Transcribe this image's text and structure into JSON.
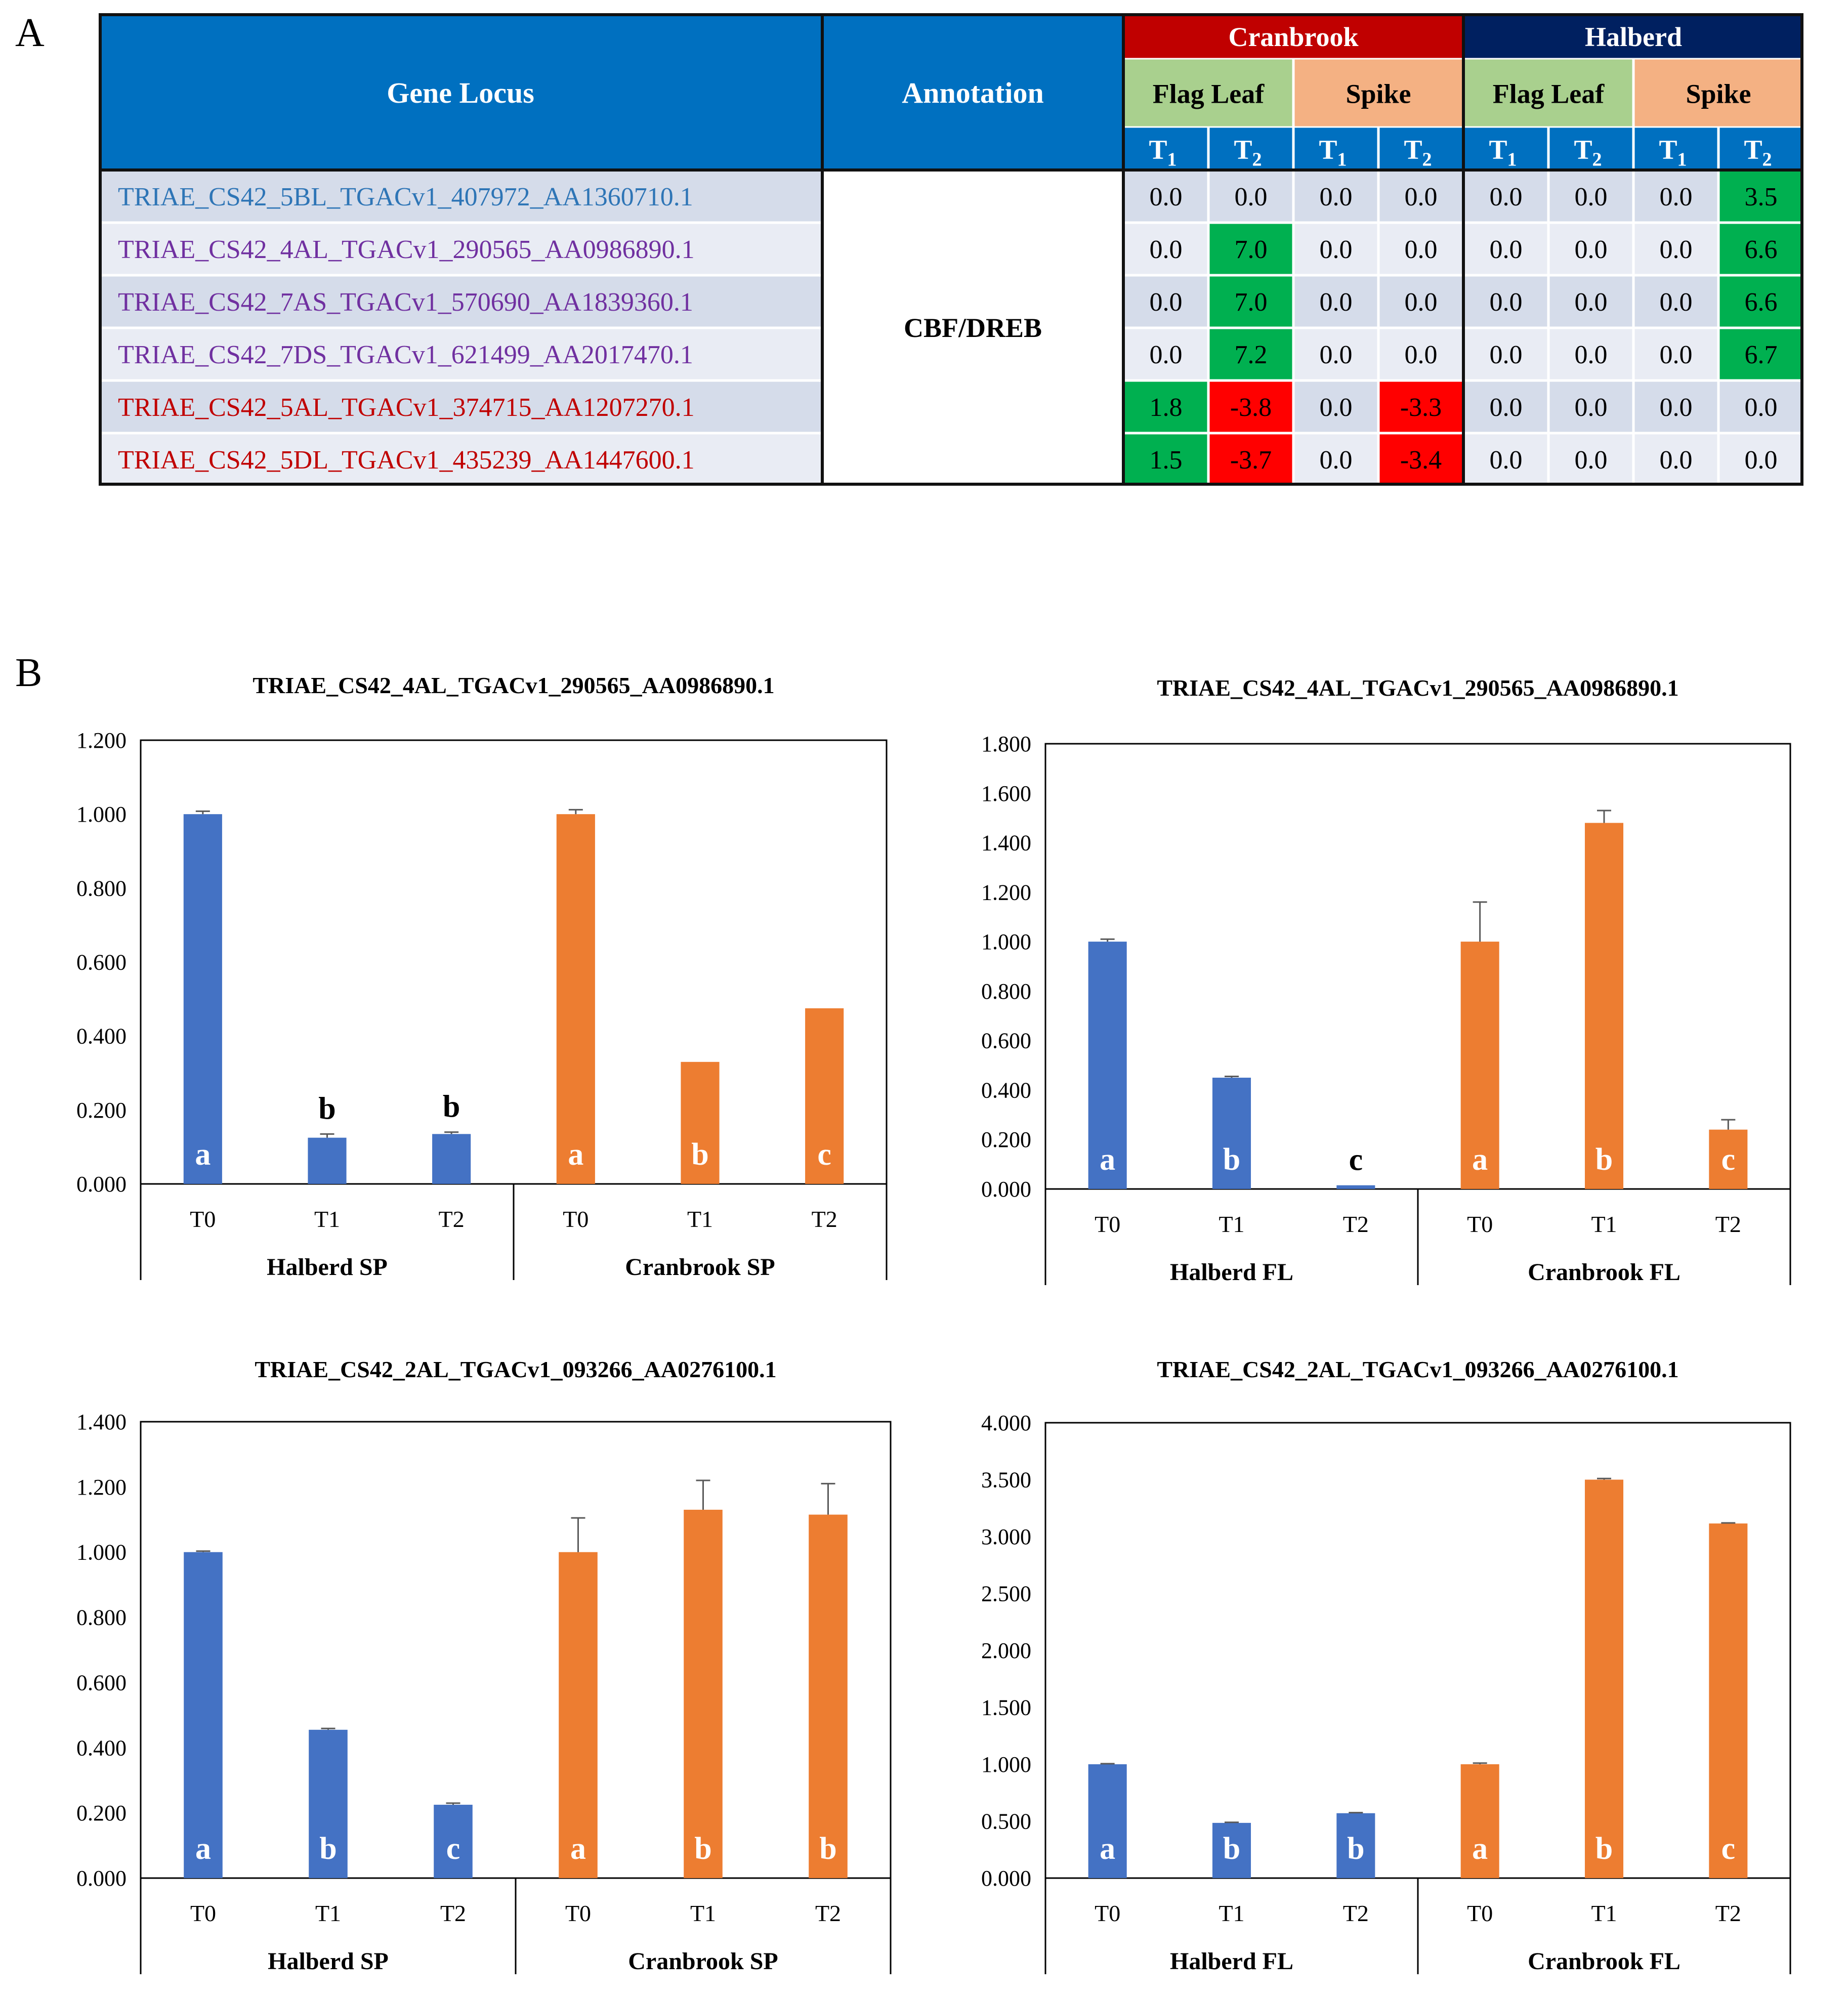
{
  "panel_a_label": "A",
  "panel_b_label": "B",
  "heatmap": {
    "header_gene": "Gene Locus",
    "header_annotation": "Annotation",
    "cultivars": [
      {
        "name": "Cranbrook",
        "color": "#c00000"
      },
      {
        "name": "Halberd",
        "color": "#002060"
      }
    ],
    "tissues": [
      {
        "name": "Flag Leaf",
        "color": "#a9d08e"
      },
      {
        "name": "Spike",
        "color": "#f4b183"
      },
      {
        "name": "Flag Leaf",
        "color": "#a9d08e"
      },
      {
        "name": "Spike",
        "color": "#f4b183"
      }
    ],
    "timepoints": [
      "T",
      "T",
      "T",
      "T",
      "T",
      "T",
      "T",
      "T"
    ],
    "timepoint_subs": [
      "1",
      "2",
      "1",
      "2",
      "1",
      "2",
      "1",
      "2"
    ],
    "annotation": "CBF/DREB",
    "header_color": "#0070c0",
    "positive_color": "#00b050",
    "negative_color": "#ff0000",
    "rows": [
      {
        "gene": "TRIAE_CS42_5BL_TGACv1_407972_AA1360710.1",
        "color": "#2e75b6",
        "values": [
          "0.0",
          "0.0",
          "0.0",
          "0.0",
          "0.0",
          "0.0",
          "0.0",
          "3.5"
        ]
      },
      {
        "gene": "TRIAE_CS42_4AL_TGACv1_290565_AA0986890.1",
        "color": "#7030a0",
        "values": [
          "0.0",
          "7.0",
          "0.0",
          "0.0",
          "0.0",
          "0.0",
          "0.0",
          "6.6"
        ]
      },
      {
        "gene": "TRIAE_CS42_7AS_TGACv1_570690_AA1839360.1",
        "color": "#7030a0",
        "values": [
          "0.0",
          "7.0",
          "0.0",
          "0.0",
          "0.0",
          "0.0",
          "0.0",
          "6.6"
        ]
      },
      {
        "gene": "TRIAE_CS42_7DS_TGACv1_621499_AA2017470.1",
        "color": "#7030a0",
        "values": [
          "0.0",
          "7.2",
          "0.0",
          "0.0",
          "0.0",
          "0.0",
          "0.0",
          "6.7"
        ]
      },
      {
        "gene": "TRIAE_CS42_5AL_TGACv1_374715_AA1207270.1",
        "color": "#c00000",
        "values": [
          "1.8",
          "-3.8",
          "0.0",
          "-3.3",
          "0.0",
          "0.0",
          "0.0",
          "0.0"
        ]
      },
      {
        "gene": "TRIAE_CS42_5DL_TGACv1_435239_AA1447600.1",
        "color": "#c00000",
        "values": [
          "1.5",
          "-3.7",
          "0.0",
          "-3.4",
          "0.0",
          "0.0",
          "0.0",
          "0.0"
        ]
      }
    ]
  },
  "chart_data": [
    {
      "type": "bar",
      "title": "TRIAE_CS42_4AL_TGACv1_290565_AA0986890.1",
      "ylim": [
        0,
        1.2
      ],
      "ystep": 0.2,
      "yticks": [
        "0.000",
        "0.200",
        "0.400",
        "0.600",
        "0.800",
        "1.000",
        "1.200"
      ],
      "groups": [
        {
          "name": "Halberd SP",
          "color": "#4472c4",
          "categories": [
            "T0",
            "T1",
            "T2"
          ],
          "values": [
            1.0,
            0.125,
            0.135
          ],
          "errors": [
            0.008,
            0.01,
            0.005
          ],
          "letters": [
            "a",
            "b",
            "b"
          ],
          "letter_pos": [
            "inside",
            "above",
            "above"
          ]
        },
        {
          "name": "Cranbrook SP",
          "color": "#ed7d31",
          "categories": [
            "T0",
            "T1",
            "T2"
          ],
          "values": [
            1.0,
            0.33,
            0.475
          ],
          "errors": [
            0.012,
            0.0,
            0.0
          ],
          "letters": [
            "a",
            "b",
            "c"
          ],
          "letter_pos": [
            "inside",
            "inside",
            "inside"
          ]
        }
      ]
    },
    {
      "type": "bar",
      "title": "TRIAE_CS42_4AL_TGACv1_290565_AA0986890.1",
      "ylim": [
        0,
        1.8
      ],
      "ystep": 0.2,
      "yticks": [
        "0.000",
        "0.200",
        "0.400",
        "0.600",
        "0.800",
        "1.000",
        "1.200",
        "1.400",
        "1.600",
        "1.800"
      ],
      "groups": [
        {
          "name": "Halberd FL",
          "color": "#4472c4",
          "categories": [
            "T0",
            "T1",
            "T2"
          ],
          "values": [
            1.0,
            0.45,
            0.015
          ],
          "errors": [
            0.01,
            0.005,
            0.0
          ],
          "letters": [
            "a",
            "b",
            "c"
          ],
          "letter_pos": [
            "inside",
            "inside",
            "above"
          ]
        },
        {
          "name": "Cranbrook FL",
          "color": "#ed7d31",
          "categories": [
            "T0",
            "T1",
            "T2"
          ],
          "values": [
            1.0,
            1.48,
            0.24
          ],
          "errors": [
            0.16,
            0.05,
            0.04
          ],
          "letters": [
            "a",
            "b",
            "c"
          ],
          "letter_pos": [
            "inside",
            "inside",
            "inside"
          ]
        }
      ]
    },
    {
      "type": "bar",
      "title": "TRIAE_CS42_2AL_TGACv1_093266_AA0276100.1",
      "ylim": [
        0,
        1.4
      ],
      "ystep": 0.2,
      "yticks": [
        "0.000",
        "0.200",
        "0.400",
        "0.600",
        "0.800",
        "1.000",
        "1.200",
        "1.400"
      ],
      "groups": [
        {
          "name": "Halberd SP",
          "color": "#4472c4",
          "categories": [
            "T0",
            "T1",
            "T2"
          ],
          "values": [
            1.0,
            0.455,
            0.225
          ],
          "errors": [
            0.003,
            0.004,
            0.005
          ],
          "letters": [
            "a",
            "b",
            "c"
          ],
          "letter_pos": [
            "inside",
            "inside",
            "inside"
          ]
        },
        {
          "name": "Cranbrook SP",
          "color": "#ed7d31",
          "categories": [
            "T0",
            "T1",
            "T2"
          ],
          "values": [
            1.0,
            1.13,
            1.115
          ],
          "errors": [
            0.105,
            0.09,
            0.095
          ],
          "letters": [
            "a",
            "b",
            "b"
          ],
          "letter_pos": [
            "inside",
            "inside",
            "inside"
          ]
        }
      ]
    },
    {
      "type": "bar",
      "title": "TRIAE_CS42_2AL_TGACv1_093266_AA0276100.1",
      "ylim": [
        0,
        4.0
      ],
      "ystep": 0.5,
      "yticks": [
        "0.000",
        "0.500",
        "1.000",
        "1.500",
        "2.000",
        "2.500",
        "3.000",
        "3.500",
        "4.000"
      ],
      "groups": [
        {
          "name": "Halberd FL",
          "color": "#4472c4",
          "categories": [
            "T0",
            "T1",
            "T2"
          ],
          "values": [
            1.0,
            0.485,
            0.57
          ],
          "errors": [
            0.005,
            0.005,
            0.005
          ],
          "letters": [
            "a",
            "b",
            "b"
          ],
          "letter_pos": [
            "inside",
            "inside",
            "inside"
          ]
        },
        {
          "name": "Cranbrook FL",
          "color": "#ed7d31",
          "categories": [
            "T0",
            "T1",
            "T2"
          ],
          "values": [
            1.0,
            3.5,
            3.115
          ],
          "errors": [
            0.01,
            0.01,
            0.005
          ],
          "letters": [
            "a",
            "b",
            "c"
          ],
          "letter_pos": [
            "inside",
            "inside",
            "inside"
          ]
        }
      ]
    }
  ]
}
